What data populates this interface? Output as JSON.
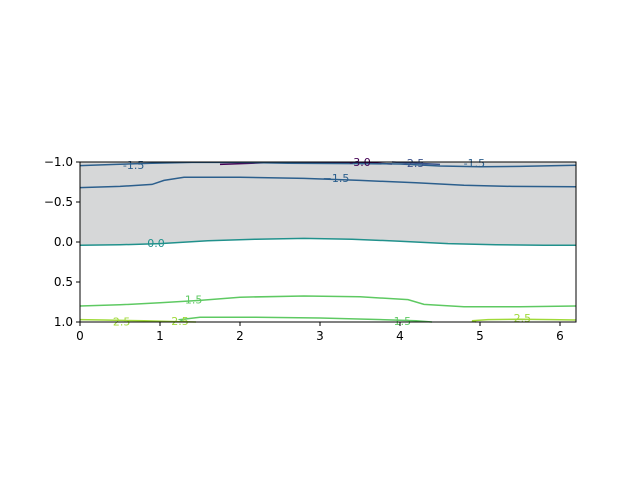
{
  "chart_data": {
    "type": "contour",
    "title": "",
    "xlabel": "",
    "ylabel": "",
    "xlim": [
      0,
      6.2
    ],
    "ylim": [
      1.0,
      -1.0
    ],
    "x_ticks": [
      0,
      1,
      2,
      3,
      4,
      5,
      6
    ],
    "x_tick_labels": [
      "0",
      "1",
      "2",
      "3",
      "4",
      "5",
      "6"
    ],
    "y_ticks": [
      -1.0,
      -0.5,
      0.0,
      0.5,
      1.0
    ],
    "y_tick_labels": [
      "−1.0",
      "−0.5",
      "0.0",
      "0.5",
      "1.0"
    ],
    "grid": false,
    "filled_region": {
      "y_from": -1.0,
      "y_to": "level 0.0 contour",
      "color": "#d6d7d8"
    },
    "series": [
      {
        "level": -3.0,
        "color": "#440154",
        "points": [
          [
            1.75,
            -0.97
          ],
          [
            2.3,
            -0.99
          ],
          [
            3.0,
            -0.995
          ],
          [
            3.6,
            -0.99
          ],
          [
            3.9,
            -0.975
          ]
        ],
        "labels": [
          {
            "text": "-3.0",
            "x": 3.5,
            "y": -1.0
          }
        ]
      },
      {
        "level": -2.5,
        "color": "#3b528b",
        "points": [
          [
            3.9,
            -1.0
          ],
          [
            4.2,
            -0.985
          ],
          [
            4.5,
            -0.97
          ]
        ],
        "labels": [
          {
            "text": "-2.5",
            "x": 4.17,
            "y": -0.99
          }
        ]
      },
      {
        "level": -1.5,
        "color": "#2c5f8d",
        "points": [
          [
            0.0,
            -0.955
          ],
          [
            0.45,
            -0.97
          ],
          [
            0.9,
            -0.985
          ],
          [
            1.4,
            -0.995
          ],
          [
            2.0,
            -0.995
          ],
          [
            2.6,
            -0.985
          ],
          [
            3.5,
            -0.98
          ],
          [
            4.0,
            -0.975
          ],
          [
            4.5,
            -0.95
          ],
          [
            5.0,
            -0.94
          ],
          [
            5.5,
            -0.945
          ],
          [
            6.2,
            -0.96
          ]
        ],
        "labels": [
          {
            "text": "-1.5",
            "x": 0.67,
            "y": -0.96
          },
          {
            "text": "-1.5",
            "x": 4.93,
            "y": -0.985
          }
        ]
      },
      {
        "level": -1.5,
        "color": "#2c5f8d",
        "points": [
          [
            0.0,
            -0.68
          ],
          [
            0.5,
            -0.695
          ],
          [
            0.9,
            -0.72
          ],
          [
            1.05,
            -0.77
          ],
          [
            1.3,
            -0.81
          ],
          [
            2.0,
            -0.81
          ],
          [
            2.8,
            -0.795
          ],
          [
            3.5,
            -0.77
          ],
          [
            4.2,
            -0.74
          ],
          [
            4.8,
            -0.71
          ],
          [
            5.4,
            -0.695
          ],
          [
            6.2,
            -0.69
          ]
        ],
        "labels": [
          {
            "text": "−1.5",
            "x": 3.2,
            "y": -0.8
          }
        ]
      },
      {
        "level": 0.0,
        "color": "#21918c",
        "points": [
          [
            0.0,
            0.04
          ],
          [
            0.5,
            0.035
          ],
          [
            1.0,
            0.02
          ],
          [
            1.6,
            -0.015
          ],
          [
            2.2,
            -0.035
          ],
          [
            2.8,
            -0.045
          ],
          [
            3.4,
            -0.035
          ],
          [
            4.0,
            -0.01
          ],
          [
            4.6,
            0.02
          ],
          [
            5.2,
            0.035
          ],
          [
            5.8,
            0.04
          ],
          [
            6.2,
            0.04
          ]
        ],
        "labels": [
          {
            "text": "0.0",
            "x": 0.95,
            "y": 0.01
          }
        ]
      },
      {
        "level": 1.5,
        "color": "#5ec962",
        "points": [
          [
            0.0,
            0.8
          ],
          [
            0.5,
            0.785
          ],
          [
            1.0,
            0.76
          ],
          [
            1.5,
            0.73
          ],
          [
            2.0,
            0.69
          ],
          [
            2.8,
            0.675
          ],
          [
            3.5,
            0.685
          ],
          [
            4.1,
            0.72
          ],
          [
            4.3,
            0.78
          ],
          [
            4.8,
            0.81
          ],
          [
            5.5,
            0.81
          ],
          [
            6.2,
            0.8
          ]
        ],
        "labels": [
          {
            "text": "1.5",
            "x": 1.42,
            "y": 0.72
          }
        ]
      },
      {
        "level": 1.5,
        "color": "#5ec962",
        "points": [
          [
            1.3,
            1.0
          ],
          [
            1.25,
            0.97
          ],
          [
            1.5,
            0.94
          ],
          [
            2.2,
            0.94
          ],
          [
            3.0,
            0.95
          ],
          [
            3.6,
            0.965
          ],
          [
            4.2,
            0.985
          ],
          [
            4.4,
            1.0
          ]
        ],
        "labels": [
          {
            "text": "1.5",
            "x": 4.03,
            "y": 0.985
          }
        ]
      },
      {
        "level": 2.5,
        "color": "#a0da39",
        "points": [
          [
            0.0,
            0.97
          ],
          [
            0.3,
            0.975
          ],
          [
            0.8,
            0.985
          ],
          [
            1.2,
            0.995
          ],
          [
            1.45,
            1.0
          ]
        ],
        "labels": [
          {
            "text": "2.5",
            "x": 0.52,
            "y": 0.995
          },
          {
            "text": "2.5",
            "x": 1.25,
            "y": 0.99
          }
        ]
      },
      {
        "level": 2.5,
        "color": "#a0da39",
        "points": [
          [
            4.95,
            1.0
          ],
          [
            4.9,
            0.985
          ],
          [
            5.1,
            0.97
          ],
          [
            5.5,
            0.965
          ],
          [
            5.9,
            0.97
          ],
          [
            6.2,
            0.975
          ]
        ],
        "labels": [
          {
            "text": "2.5",
            "x": 5.53,
            "y": 0.95
          }
        ]
      }
    ]
  }
}
